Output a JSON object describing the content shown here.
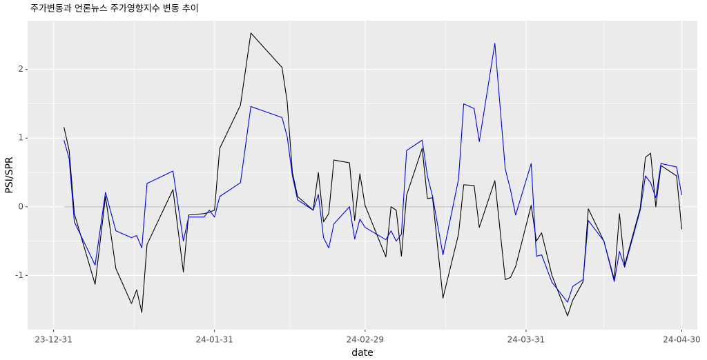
{
  "chart_data": {
    "type": "line",
    "title": "주가변동과 언론뉴스 주가영향지수 변동 추이",
    "x_label": "date",
    "y_label": "PSI/SPR",
    "x": [
      "24-01-02",
      "24-01-03",
      "24-01-04",
      "24-01-08",
      "24-01-10",
      "24-01-12",
      "24-01-15",
      "24-01-16",
      "24-01-17",
      "24-01-18",
      "24-01-23",
      "24-01-25",
      "24-01-26",
      "24-01-29",
      "24-01-30",
      "24-01-31",
      "24-02-01",
      "24-02-05",
      "24-02-07",
      "24-02-13",
      "24-02-14",
      "24-02-15",
      "24-02-16",
      "24-02-19",
      "24-02-20",
      "24-02-21",
      "24-02-22",
      "24-02-23",
      "24-02-26",
      "24-02-27",
      "24-02-28",
      "24-02-29",
      "24-03-04",
      "24-03-05",
      "24-03-06",
      "24-03-07",
      "24-03-08",
      "24-03-11",
      "24-03-12",
      "24-03-13",
      "24-03-15",
      "24-03-18",
      "24-03-19",
      "24-03-21",
      "24-03-22",
      "24-03-25",
      "24-03-27",
      "24-03-28",
      "24-03-29",
      "24-04-01",
      "24-04-02",
      "24-04-03",
      "24-04-05",
      "24-04-08",
      "24-04-09",
      "24-04-11",
      "24-04-12",
      "24-04-15",
      "24-04-17",
      "24-04-18",
      "24-04-19",
      "24-04-22",
      "24-04-23",
      "24-04-24",
      "24-04-25",
      "24-04-26",
      "24-04-29",
      "24-04-30"
    ],
    "series": [
      {
        "color": "#000000",
        "values": [
          1.16,
          0.82,
          -0.1,
          -1.13,
          0.15,
          -0.9,
          -1.41,
          -1.21,
          -1.54,
          -0.55,
          0.25,
          -0.95,
          -0.12,
          -0.1,
          -0.08,
          -0.05,
          0.85,
          1.48,
          2.53,
          2.03,
          1.53,
          0.5,
          0.15,
          -0.05,
          0.5,
          -0.22,
          -0.1,
          0.68,
          0.64,
          -0.2,
          0.48,
          0.02,
          -0.73,
          0.0,
          -0.05,
          -0.72,
          0.17,
          0.85,
          0.12,
          0.13,
          -1.33,
          -0.4,
          0.32,
          0.31,
          -0.3,
          0.38,
          -1.06,
          -1.03,
          -0.87,
          0.02,
          -0.5,
          -0.38,
          -1.0,
          -1.59,
          -1.36,
          -1.09,
          -0.03,
          -0.5,
          -1.06,
          -0.1,
          -0.85,
          -0.02,
          0.72,
          0.78,
          0.0,
          0.6,
          0.45,
          -0.33
        ]
      },
      {
        "color": "#0000ff",
        "values": [
          0.97,
          0.7,
          -0.22,
          -0.85,
          0.21,
          -0.35,
          -0.45,
          -0.42,
          -0.6,
          0.34,
          0.52,
          -0.5,
          -0.15,
          -0.15,
          -0.05,
          -0.15,
          0.15,
          0.35,
          1.46,
          1.3,
          1.02,
          0.45,
          0.1,
          -0.05,
          0.18,
          -0.45,
          -0.6,
          -0.25,
          0.0,
          -0.47,
          -0.18,
          -0.3,
          -0.48,
          -0.35,
          -0.5,
          -0.4,
          0.82,
          0.97,
          0.45,
          0.15,
          -0.7,
          0.4,
          1.5,
          1.43,
          0.95,
          2.38,
          0.55,
          0.25,
          -0.12,
          0.63,
          -0.72,
          -0.7,
          -1.1,
          -1.39,
          -1.16,
          -1.06,
          -0.2,
          -0.5,
          -1.09,
          -0.65,
          -0.88,
          -0.05,
          0.45,
          0.35,
          0.13,
          0.63,
          0.58,
          0.17
        ]
      }
    ],
    "hline": 0,
    "xlim": [
      "23-12-26",
      "24-05-03"
    ],
    "xticks": [
      "23-12-31",
      "24-01-31",
      "24-02-29",
      "24-03-31",
      "24-04-30"
    ],
    "ylim": [
      -1.79,
      2.71
    ],
    "yticks": [
      -1,
      0,
      1,
      2
    ],
    "grid": true
  }
}
